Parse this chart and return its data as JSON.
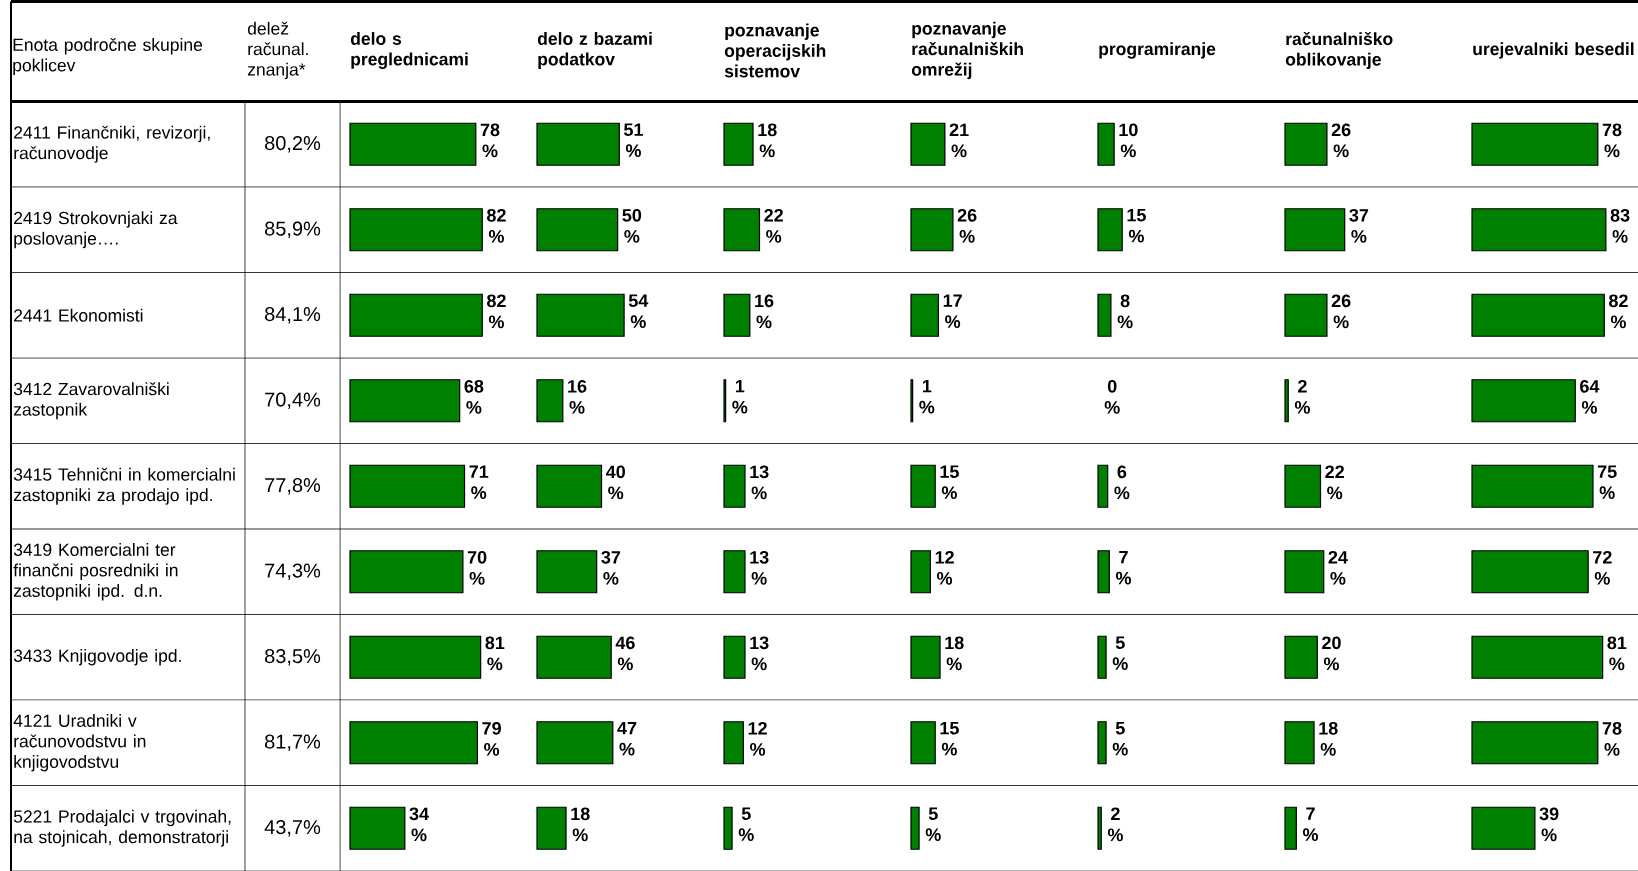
{
  "chart_data": [
    {
      "type": "other",
      "title": "delež računal. znanja*",
      "ylabel": "Enota področne skupine poklicev",
      "categories": [
        "2411 Finančniki, revizorji, računovodje",
        "2419 Strokovnjaki za poslovanje….",
        "2441 Ekonomisti",
        "3412 Zavarovalniški zastopnik",
        "3415 Tehnični in komercialni zastopniki za prodajo ipd.",
        "3419 Komercialni ter finančni posredniki in zastopniki ipd. d.n.",
        "3433 Knjigovodje ipd.",
        "4121 Uradniki v računovodstvu in knjigovodstvu",
        "5221 Prodajalci v trgovinah, na stojnicah, demonstratorji"
      ],
      "values": [
        80.2,
        85.9,
        84.1,
        70.4,
        77.8,
        74.3,
        83.5,
        81.7,
        43.7
      ],
      "value_labels": [
        "80,2%",
        "85,9%",
        "84,1%",
        "70,4%",
        "77,8%",
        "74,3%",
        "83,5%",
        "81,7%",
        "43,7%"
      ]
    },
    {
      "type": "bar",
      "orientation": "horizontal",
      "title": "delo s preglednicami",
      "color": "#008000",
      "values": [
        78,
        82,
        82,
        68,
        71,
        70,
        81,
        79,
        34
      ],
      "value_labels": [
        "78 %",
        "82 %",
        "82 %",
        "68 %",
        "71 %",
        "70 %",
        "81 %",
        "79 %",
        "34 %"
      ]
    },
    {
      "type": "bar",
      "orientation": "horizontal",
      "title": "delo z bazami podatkov",
      "color": "#008000",
      "values": [
        51,
        50,
        54,
        16,
        40,
        37,
        46,
        47,
        18
      ],
      "value_labels": [
        "51 %",
        "50 %",
        "54 %",
        "16 %",
        "40 %",
        "37 %",
        "46 %",
        "47 %",
        "18 %"
      ]
    },
    {
      "type": "bar",
      "orientation": "horizontal",
      "title": "poznavanje operacijskih sistemov",
      "color": "#008000",
      "values": [
        18,
        22,
        16,
        1,
        13,
        13,
        13,
        12,
        5
      ],
      "value_labels": [
        "18 %",
        "22 %",
        "16 %",
        "1 %",
        "13 %",
        "13 %",
        "13 %",
        "12 %",
        "5 %"
      ]
    },
    {
      "type": "bar",
      "orientation": "horizontal",
      "title": "poznavanje računalniških omrežij",
      "color": "#008000",
      "values": [
        21,
        26,
        17,
        1,
        15,
        12,
        18,
        15,
        5
      ],
      "value_labels": [
        "21 %",
        "26 %",
        "17 %",
        "1 %",
        "15 %",
        "12 %",
        "18 %",
        "15 %",
        "5 %"
      ]
    },
    {
      "type": "bar",
      "orientation": "horizontal",
      "title": "programiranje",
      "color": "#008000",
      "values": [
        10,
        15,
        8,
        0,
        6,
        7,
        5,
        5,
        2
      ],
      "value_labels": [
        "10 %",
        "15 %",
        "8 %",
        "0 %",
        "6 %",
        "7 %",
        "5 %",
        "5 %",
        "2 %"
      ]
    },
    {
      "type": "bar",
      "orientation": "horizontal",
      "title": "računalniško oblikovanje",
      "color": "#008000",
      "values": [
        26,
        37,
        26,
        2,
        22,
        24,
        20,
        18,
        7
      ],
      "value_labels": [
        "26 %",
        "37 %",
        "26 %",
        "2 %",
        "22 %",
        "24 %",
        "20 %",
        "18 %",
        "7 %"
      ]
    },
    {
      "type": "bar",
      "orientation": "horizontal",
      "title": "urejevalniki besedil",
      "color": "#008000",
      "values": [
        78,
        83,
        82,
        64,
        75,
        72,
        81,
        78,
        39
      ],
      "value_labels": [
        "78 %",
        "83 %",
        "82 %",
        "64 %",
        "75 %",
        "72 %",
        "81 %",
        "78 %",
        "39 %"
      ]
    }
  ]
}
